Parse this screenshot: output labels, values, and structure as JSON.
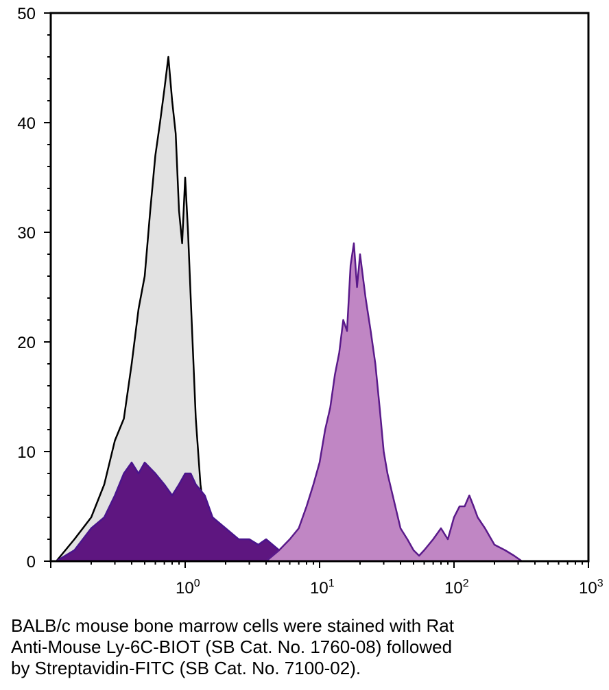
{
  "chart_data": {
    "type": "area",
    "x_scale": "log",
    "xlim": [
      0.1,
      1000
    ],
    "ylim": [
      0,
      50
    ],
    "y_ticks": [
      "0",
      "10",
      "20",
      "30",
      "40",
      "50"
    ],
    "x_ticks": [
      {
        "value": 1,
        "base": "10",
        "exp": "0"
      },
      {
        "value": 10,
        "base": "10",
        "exp": "1"
      },
      {
        "value": 100,
        "base": "10",
        "exp": "2"
      },
      {
        "value": 1000,
        "base": "10",
        "exp": "3"
      }
    ],
    "grid": false,
    "series": [
      {
        "color_fill": "#e2e2e2",
        "color_line": "#000000",
        "x": [
          0.11,
          0.15,
          0.2,
          0.25,
          0.3,
          0.35,
          0.4,
          0.45,
          0.5,
          0.55,
          0.6,
          0.65,
          0.7,
          0.75,
          0.8,
          0.85,
          0.9,
          0.95,
          1.0,
          1.05,
          1.1,
          1.2,
          1.3,
          1.4,
          1.5,
          1.6,
          1.8,
          2.0
        ],
        "y": [
          0,
          2,
          4,
          7,
          11,
          13,
          18,
          23,
          26,
          32,
          37,
          40,
          43,
          46,
          42,
          39,
          32,
          29,
          35,
          30,
          24,
          13,
          7,
          4,
          2,
          1,
          0.3,
          0
        ]
      },
      {
        "color_fill": "#5e1680",
        "color_line": "#4a148c",
        "x": [
          0.11,
          0.15,
          0.2,
          0.25,
          0.3,
          0.35,
          0.4,
          0.45,
          0.5,
          0.6,
          0.7,
          0.8,
          0.9,
          1.0,
          1.1,
          1.2,
          1.4,
          1.6,
          2.0,
          2.5,
          3.0,
          3.5,
          4.0,
          5.0,
          6.0,
          7.0
        ],
        "y": [
          0,
          1,
          3,
          4,
          6,
          8,
          9,
          8,
          9,
          8,
          7,
          6,
          7,
          8,
          8,
          7,
          6,
          4,
          3,
          2,
          2,
          1.5,
          2,
          1,
          0.5,
          0
        ]
      },
      {
        "color_fill": "#c086c4",
        "color_line": "#5a1a8a",
        "x": [
          4,
          5,
          6,
          7,
          8,
          9,
          10,
          11,
          12,
          13,
          14,
          15,
          16,
          17,
          18,
          19,
          20,
          22,
          24,
          26,
          28,
          30,
          32,
          35,
          40,
          45,
          50,
          55,
          60,
          70,
          80,
          90,
          100,
          110,
          120,
          130,
          140,
          150,
          170,
          200,
          240,
          280,
          320
        ],
        "y": [
          0,
          1,
          2,
          3,
          5,
          7,
          9,
          12,
          14,
          17,
          19,
          22,
          21,
          27,
          29,
          25,
          28,
          24,
          21,
          18,
          14,
          10,
          8,
          6,
          3,
          2,
          1,
          0.5,
          1,
          2,
          3,
          2,
          4,
          5,
          5,
          6,
          5,
          4,
          3,
          1.5,
          1,
          0.5,
          0
        ]
      }
    ]
  },
  "caption": {
    "lines": [
      "BALB/c mouse bone marrow cells were stained with Rat",
      "Anti-Mouse Ly-6C-BIOT (SB Cat. No. 1760-08) followed",
      "by Streptavidin-FITC (SB Cat. No. 7100-02)."
    ]
  }
}
